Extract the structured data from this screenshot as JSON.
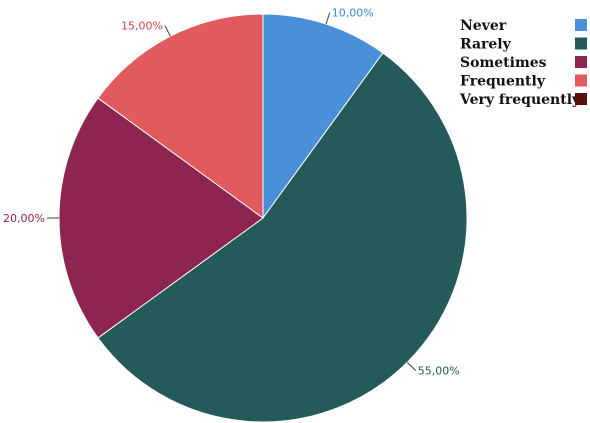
{
  "chart_data": {
    "type": "pie",
    "categories": [
      "Never",
      "Rarely",
      "Sometimes",
      "Frequently",
      "Very frequently"
    ],
    "values": [
      10,
      55,
      20,
      15,
      0
    ],
    "value_labels": [
      "10,00%",
      "55,00%",
      "20,00%",
      "15,00%",
      ""
    ],
    "colors": [
      "#4a90d9",
      "#245a5a",
      "#8e2450",
      "#e05a5e",
      "#5c0e0e"
    ],
    "label_colors": [
      "#3a88cc",
      "#245a5a",
      "#8e2450",
      "#d0444a",
      "#5c0e0e"
    ],
    "title": "",
    "legend_position": "top-right",
    "start_angle": "12 o'clock, clockwise"
  }
}
